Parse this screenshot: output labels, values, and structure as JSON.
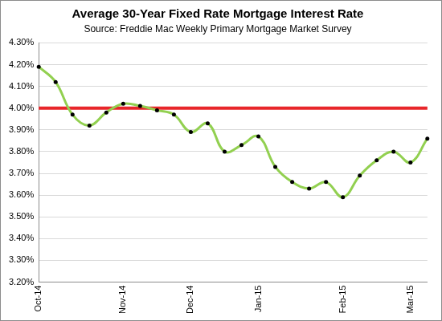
{
  "chart_data": {
    "type": "line",
    "title": "Average 30-Year Fixed Rate Mortgage Interest Rate",
    "subtitle": "Source: Freddie Mac Weekly Primary Mortgage Market Survey",
    "categories": [
      "Oct-14",
      null,
      null,
      null,
      null,
      "Nov-14",
      null,
      null,
      null,
      "Dec-14",
      null,
      null,
      null,
      "Jan-15",
      null,
      null,
      null,
      null,
      "Feb-15",
      null,
      null,
      null,
      "Mar-15",
      null
    ],
    "series": [
      {
        "name": "Average 30-Year Fixed Rate Mortgage Interest Rate",
        "color": "#92d050",
        "marker": "circle",
        "line_style": "solid",
        "values": [
          4.19,
          4.12,
          3.97,
          3.92,
          3.98,
          4.02,
          4.01,
          3.99,
          3.97,
          3.89,
          3.93,
          3.8,
          3.83,
          3.87,
          3.73,
          3.66,
          3.63,
          3.66,
          3.59,
          3.69,
          3.76,
          3.8,
          3.75,
          3.86
        ]
      }
    ],
    "reference_line": {
      "value": 4.0,
      "color": "#e8262a"
    },
    "ylim": [
      3.2,
      4.3
    ],
    "yticks": [
      {
        "value": 3.2,
        "label": "3.20%"
      },
      {
        "value": 3.3,
        "label": "3.30%"
      },
      {
        "value": 3.4,
        "label": "3.40%"
      },
      {
        "value": 3.5,
        "label": "3.50%"
      },
      {
        "value": 3.6,
        "label": "3.60%"
      },
      {
        "value": 3.7,
        "label": "3.70%"
      },
      {
        "value": 3.8,
        "label": "3.80%"
      },
      {
        "value": 3.9,
        "label": "3.90%"
      },
      {
        "value": 4.0,
        "label": "4.00%"
      },
      {
        "value": 4.1,
        "label": "4.10%"
      },
      {
        "value": 4.2,
        "label": "4.20%"
      },
      {
        "value": 4.3,
        "label": "4.30%"
      }
    ],
    "grid": true
  }
}
